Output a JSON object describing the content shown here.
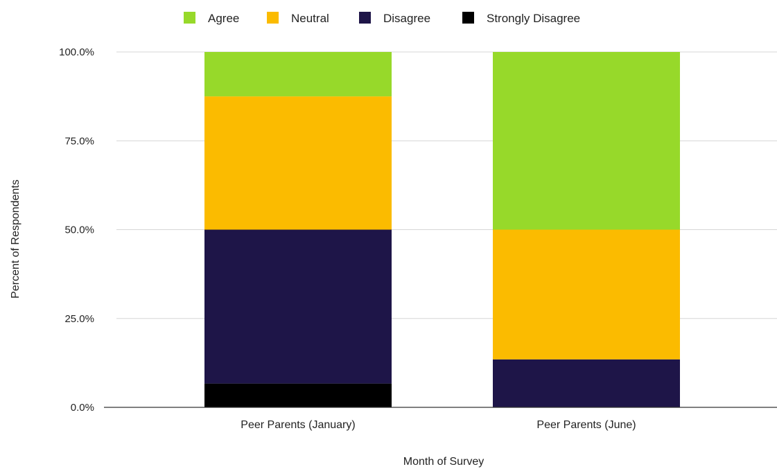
{
  "chart_data": {
    "type": "bar",
    "stacked": true,
    "categories": [
      "Peer Parents (January)",
      "Peer Parents (June)"
    ],
    "series": [
      {
        "name": "Strongly Disagree",
        "color": "#000000",
        "values": [
          6.7,
          0
        ]
      },
      {
        "name": "Disagree",
        "color": "#1e1548",
        "values": [
          43.3,
          13.5
        ]
      },
      {
        "name": "Neutral",
        "color": "#fbbb00",
        "values": [
          37.5,
          36.5
        ]
      },
      {
        "name": "Agree",
        "color": "#97d92a",
        "values": [
          12.5,
          50.0
        ]
      }
    ],
    "legend_order": [
      "Agree",
      "Neutral",
      "Disagree",
      "Strongly Disagree"
    ],
    "legend_position": "top",
    "xlabel": "Month of Survey",
    "ylabel": "Percent of Respondents",
    "yticks": [
      "0.0%",
      "25.0%",
      "50.0%",
      "75.0%",
      "100.0%"
    ],
    "ylim": [
      0,
      100
    ],
    "grid": true
  }
}
